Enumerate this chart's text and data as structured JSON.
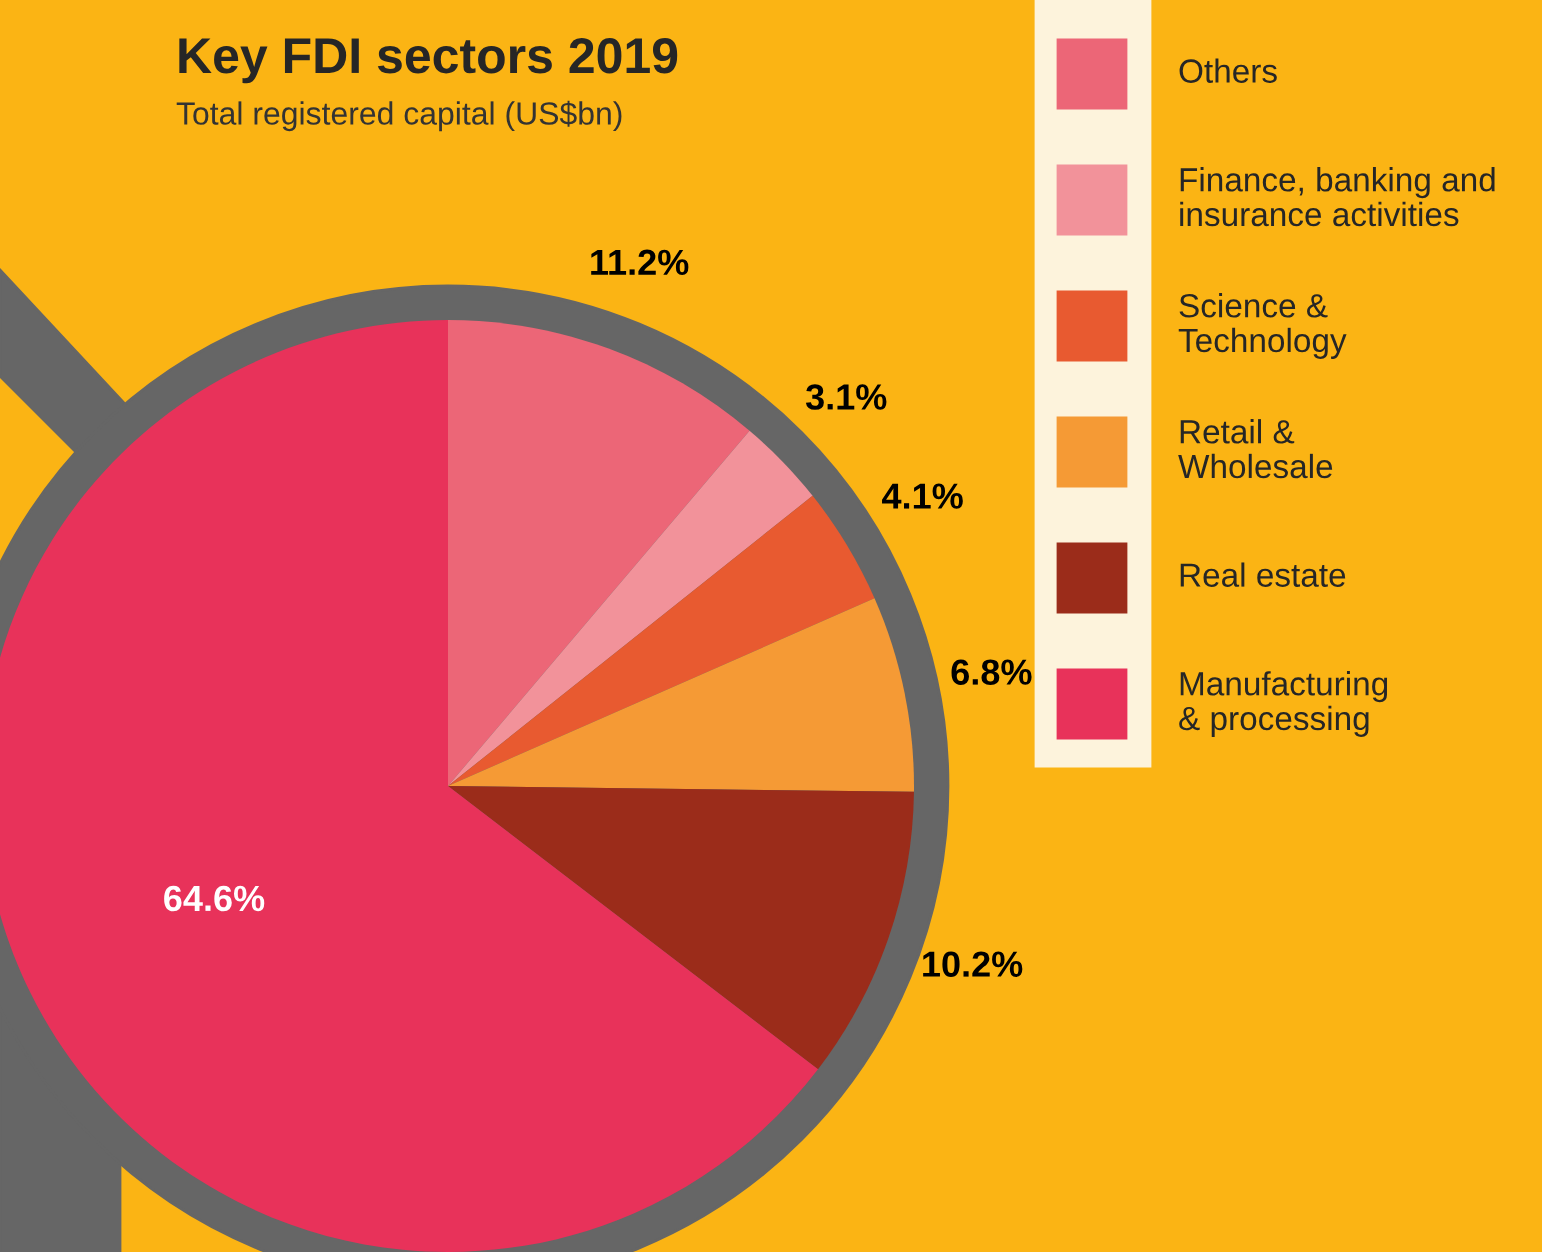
{
  "chart_data": {
    "type": "pie",
    "title": "Key FDI sectors 2019",
    "subtitle": "Total registered capital (US$bn)",
    "categories": [
      "Others",
      "Finance, banking and\ninsurance activities",
      "Science &\nTechnology",
      "Retail &\nWholesale",
      "Real estate",
      "Manufacturing\n& processing"
    ],
    "values": [
      11.2,
      3.1,
      4.1,
      6.8,
      10.2,
      64.6
    ],
    "colors": [
      "#ec6677",
      "#f2929a",
      "#e85a30",
      "#f59a35",
      "#9b2c1a",
      "#e8325a"
    ],
    "value_labels": [
      "11.2%",
      "3.1%",
      "4.1%",
      "6.8%",
      "10.2%",
      "64.6%"
    ],
    "legend": "top right"
  }
}
